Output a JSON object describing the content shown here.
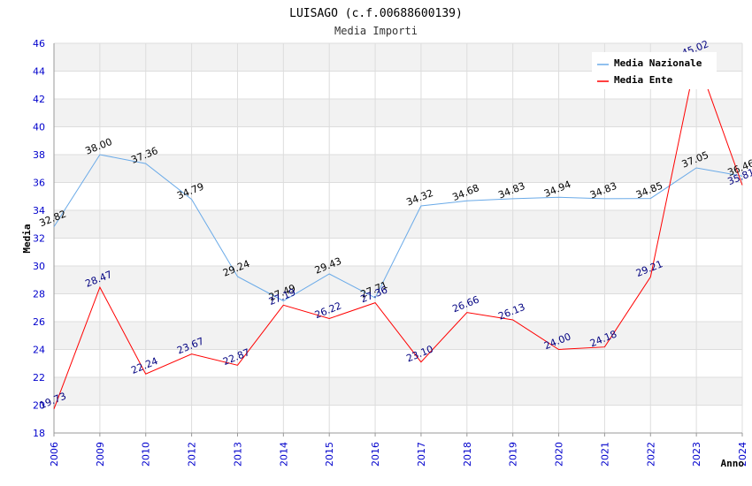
{
  "chart_data": {
    "type": "line",
    "title": "LUISAGO (c.f.00688600139)",
    "subtitle": "Media Importi",
    "xlabel": "Anno",
    "ylabel": "Media",
    "ylim": [
      18,
      46
    ],
    "yticks": [
      18,
      20,
      22,
      24,
      26,
      28,
      30,
      32,
      34,
      36,
      38,
      40,
      42,
      44,
      46
    ],
    "categories": [
      "2006",
      "2009",
      "2010",
      "2012",
      "2013",
      "2014",
      "2015",
      "2016",
      "2017",
      "2018",
      "2019",
      "2020",
      "2021",
      "2022",
      "2023",
      "2024"
    ],
    "series": [
      {
        "name": "Media Nazionale",
        "color": "#6aaae8",
        "values": [
          32.82,
          38.0,
          37.36,
          34.79,
          29.24,
          27.49,
          29.43,
          27.71,
          34.32,
          34.68,
          34.83,
          34.94,
          34.83,
          34.85,
          37.05,
          36.46
        ],
        "labels": [
          "32.82",
          "38.00",
          "37.36",
          "34.79",
          "29.24",
          "27.49",
          "29.43",
          "27.71",
          "34.32",
          "34.68",
          "34.83",
          "34.94",
          "34.83",
          "34.85",
          "37.05",
          "36.46"
        ]
      },
      {
        "name": "Media Ente",
        "color": "#ff0000",
        "values": [
          19.73,
          28.47,
          22.24,
          23.67,
          22.87,
          27.19,
          26.22,
          27.36,
          23.1,
          26.66,
          26.13,
          24.0,
          24.18,
          29.21,
          45.02,
          35.81
        ],
        "labels": [
          "19.73",
          "28.47",
          "22.24",
          "23.67",
          "22.87",
          "27.19",
          "26.22",
          "27.36",
          "23.10",
          "26.66",
          "26.13",
          "24.00",
          "24.18",
          "29.21",
          "45.02",
          "35.81"
        ]
      }
    ],
    "grid": true,
    "legend_position": "top-right"
  }
}
